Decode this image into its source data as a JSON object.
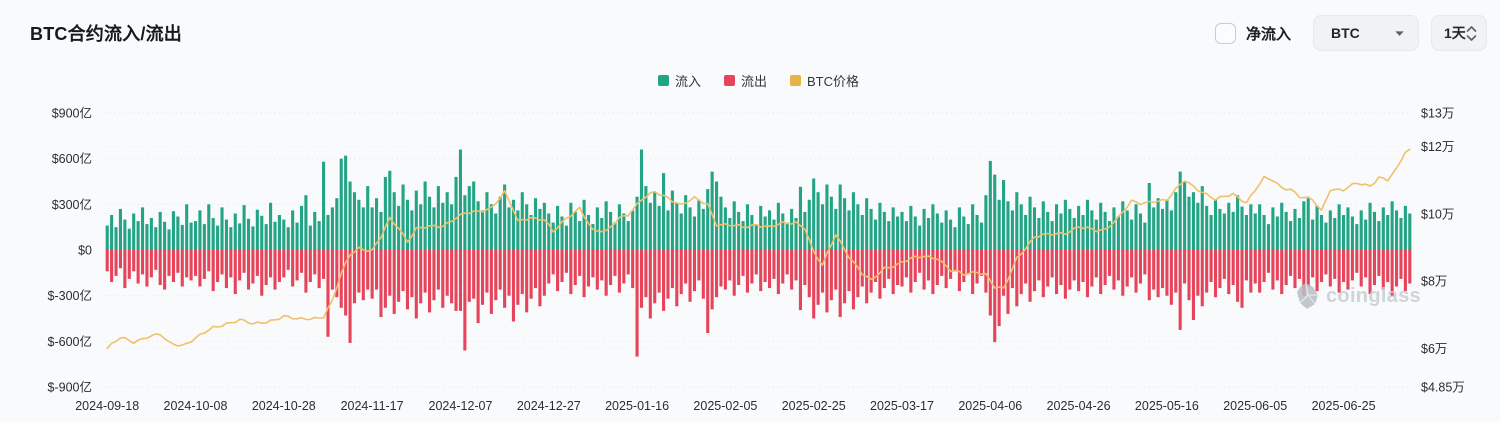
{
  "header": {
    "title": "BTC合约流入/流出"
  },
  "controls": {
    "net_flow": {
      "label": "净流入",
      "checked": false
    },
    "coin_select": {
      "value": "BTC"
    },
    "interval_select": {
      "value": "1天"
    }
  },
  "legend": {
    "items": [
      {
        "label": "流入",
        "color": "#23a485"
      },
      {
        "label": "流出",
        "color": "#e6445a"
      },
      {
        "label": "BTC价格",
        "color": "#e8b345"
      }
    ]
  },
  "watermark": {
    "text": "coinglass"
  },
  "chart_data": {
    "type": "bar",
    "title": "BTC合约流入/流出",
    "grid": true,
    "legend_position": "top-center",
    "start_date": "2024-09-18",
    "x_tick_labels": [
      "2024-09-18",
      "2024-10-08",
      "2024-10-28",
      "2024-11-17",
      "2024-12-07",
      "2024-12-27",
      "2025-01-16",
      "2025-02-05",
      "2025-02-25",
      "2025-03-17",
      "2025-04-06",
      "2025-04-26",
      "2025-05-16",
      "2025-06-05",
      "2025-06-25"
    ],
    "x_tick_day_indices": [
      0,
      20,
      40,
      60,
      80,
      100,
      120,
      140,
      160,
      180,
      200,
      220,
      240,
      260,
      280
    ],
    "left_axis": {
      "ticks": [
        "$900亿",
        "$600亿",
        "$300亿",
        "$0",
        "$-300亿",
        "$-600亿",
        "$-900亿"
      ],
      "tick_values": [
        900,
        600,
        300,
        0,
        -300,
        -600,
        -900
      ],
      "unit": "亿USD",
      "range": [
        -900,
        900
      ]
    },
    "right_axis": {
      "ticks": [
        "$13万",
        "$12万",
        "$10万",
        "$8万",
        "$6万",
        "$4.85万"
      ],
      "tick_values": [
        13,
        12,
        10,
        8,
        6,
        4.85
      ],
      "unit": "万USD",
      "range": [
        4.85,
        13
      ]
    },
    "series": [
      {
        "name": "流入",
        "type": "bar",
        "color": "#23a485",
        "unit": "亿USD",
        "values": [
          160,
          230,
          150,
          270,
          200,
          140,
          240,
          190,
          280,
          170,
          210,
          150,
          250,
          185,
          135,
          255,
          220,
          165,
          300,
          180,
          190,
          260,
          170,
          300,
          210,
          160,
          280,
          200,
          150,
          240,
          175,
          295,
          205,
          155,
          265,
          225,
          170,
          310,
          185,
          230,
          200,
          150,
          260,
          180,
          290,
          360,
          160,
          250,
          190,
          580,
          230,
          280,
          340,
          600,
          620,
          450,
          380,
          330,
          280,
          420,
          280,
          340,
          250,
          480,
          520,
          380,
          290,
          430,
          330,
          260,
          390,
          300,
          450,
          350,
          280,
          420,
          310,
          380,
          300,
          480,
          660,
          360,
          420,
          450,
          320,
          260,
          380,
          300,
          240,
          350,
          430,
          280,
          330,
          260,
          380,
          300,
          230,
          340,
          270,
          310,
          240,
          180,
          290,
          220,
          160,
          310,
          250,
          190,
          330,
          230,
          170,
          280,
          210,
          320,
          250,
          180,
          300,
          240,
          190,
          260,
          350,
          660,
          420,
          310,
          380,
          290,
          505,
          260,
          390,
          310,
          240,
          360,
          280,
          220,
          330,
          270,
          400,
          515,
          450,
          350,
          280,
          210,
          320,
          250,
          190,
          300,
          230,
          170,
          290,
          220,
          260,
          200,
          310,
          240,
          180,
          270,
          210,
          415,
          250,
          330,
          470,
          380,
          300,
          430,
          350,
          270,
          430,
          340,
          260,
          380,
          300,
          230,
          340,
          270,
          200,
          310,
          250,
          190,
          280,
          220,
          250,
          190,
          290,
          220,
          160,
          270,
          210,
          300,
          240,
          180,
          260,
          200,
          150,
          280,
          220,
          170,
          300,
          230,
          180,
          360,
          585,
          495,
          330,
          460,
          320,
          260,
          380,
          300,
          230,
          350,
          280,
          210,
          320,
          250,
          190,
          300,
          240,
          330,
          270,
          210,
          290,
          230,
          330,
          260,
          200,
          310,
          250,
          190,
          280,
          220,
          320,
          260,
          200,
          300,
          240,
          180,
          440,
          280,
          340,
          270,
          330,
          260,
          380,
          515,
          450,
          350,
          380,
          310,
          420,
          290,
          230,
          330,
          270,
          240,
          310,
          250,
          360,
          285,
          230,
          300,
          240,
          300,
          230,
          170,
          280,
          220,
          310,
          250,
          190,
          270,
          210,
          320,
          340,
          200,
          290,
          230,
          180,
          260,
          210,
          300,
          230,
          280,
          220,
          170,
          260,
          200,
          310,
          250,
          190,
          280,
          230,
          320,
          260,
          210,
          290,
          240
        ]
      },
      {
        "name": "流出",
        "type": "bar",
        "color": "#e6445a",
        "unit": "亿USD",
        "values": [
          -140,
          -210,
          -170,
          -120,
          -250,
          -190,
          -140,
          -220,
          -160,
          -240,
          -180,
          -130,
          -230,
          -260,
          -170,
          -210,
          -150,
          -240,
          -180,
          -200,
          -170,
          -240,
          -190,
          -140,
          -270,
          -210,
          -160,
          -250,
          -180,
          -290,
          -200,
          -150,
          -260,
          -220,
          -170,
          -300,
          -230,
          -180,
          -260,
          -210,
          -180,
          -130,
          -240,
          -200,
          -150,
          -280,
          -210,
          -160,
          -250,
          -190,
          -570,
          -260,
          -310,
          -380,
          -430,
          -610,
          -350,
          -280,
          -330,
          -260,
          -320,
          -260,
          -440,
          -380,
          -300,
          -420,
          -340,
          -270,
          -390,
          -310,
          -450,
          -350,
          -280,
          -410,
          -330,
          -260,
          -380,
          -300,
          -350,
          -400,
          -400,
          -660,
          -340,
          -320,
          -480,
          -360,
          -280,
          -420,
          -330,
          -260,
          -380,
          -300,
          -470,
          -360,
          -290,
          -410,
          -320,
          -250,
          -370,
          -300,
          -220,
          -160,
          -270,
          -210,
          -150,
          -290,
          -230,
          -170,
          -310,
          -240,
          -180,
          -260,
          -200,
          -300,
          -230,
          -170,
          -280,
          -220,
          -160,
          -250,
          -700,
          -380,
          -310,
          -450,
          -350,
          -280,
          -400,
          -320,
          -250,
          -370,
          -290,
          -220,
          -340,
          -270,
          -200,
          -320,
          -545,
          -390,
          -310,
          -240,
          -260,
          -200,
          -300,
          -230,
          -170,
          -280,
          -220,
          -160,
          -270,
          -210,
          -250,
          -190,
          -290,
          -220,
          -160,
          -260,
          -200,
          -395,
          -230,
          -310,
          -450,
          -360,
          -280,
          -410,
          -330,
          -260,
          -440,
          -350,
          -270,
          -390,
          -310,
          -240,
          -350,
          -280,
          -210,
          -320,
          -250,
          -190,
          -290,
          -230,
          -240,
          -180,
          -280,
          -210,
          -150,
          -260,
          -200,
          -290,
          -230,
          -170,
          -250,
          -190,
          -140,
          -270,
          -210,
          -160,
          -290,
          -220,
          -170,
          -280,
          -430,
          -605,
          -500,
          -300,
          -420,
          -250,
          -370,
          -290,
          -220,
          -340,
          -270,
          -200,
          -310,
          -240,
          -180,
          -290,
          -230,
          -320,
          -260,
          -200,
          -270,
          -210,
          -310,
          -240,
          -180,
          -290,
          -230,
          -170,
          -260,
          -200,
          -300,
          -240,
          -180,
          -280,
          -220,
          -160,
          -330,
          -260,
          -310,
          -250,
          -300,
          -360,
          -280,
          -525,
          -220,
          -330,
          -460,
          -300,
          -370,
          -280,
          -210,
          -310,
          -250,
          -190,
          -290,
          -230,
          -340,
          -380,
          -200,
          -280,
          -220,
          -280,
          -210,
          -150,
          -260,
          -200,
          -290,
          -230,
          -170,
          -250,
          -190,
          -300,
          -240,
          -180,
          -270,
          -210,
          -160,
          -240,
          -190,
          -280,
          -210,
          -260,
          -200,
          -150,
          -240,
          -180,
          -290,
          -230,
          -170,
          -260,
          -210,
          -300,
          -240,
          -190,
          -270,
          -220
        ]
      },
      {
        "name": "BTC价格",
        "type": "line",
        "color": "#f1c06a",
        "unit": "万USD",
        "waypoints": [
          [
            0,
            6.0
          ],
          [
            3,
            6.3
          ],
          [
            6,
            6.2
          ],
          [
            9,
            6.35
          ],
          [
            12,
            6.4
          ],
          [
            14,
            6.15
          ],
          [
            17,
            6.1
          ],
          [
            20,
            6.3
          ],
          [
            24,
            6.6
          ],
          [
            27,
            6.75
          ],
          [
            30,
            6.85
          ],
          [
            33,
            6.7
          ],
          [
            36,
            6.8
          ],
          [
            40,
            6.95
          ],
          [
            43,
            6.85
          ],
          [
            46,
            6.9
          ],
          [
            49,
            6.95
          ],
          [
            51,
            7.4
          ],
          [
            53,
            8.2
          ],
          [
            55,
            8.8
          ],
          [
            57,
            9.0
          ],
          [
            60,
            8.9
          ],
          [
            62,
            9.3
          ],
          [
            64,
            9.85
          ],
          [
            66,
            9.6
          ],
          [
            68,
            9.2
          ],
          [
            70,
            9.55
          ],
          [
            73,
            9.6
          ],
          [
            76,
            9.65
          ],
          [
            79,
            9.9
          ],
          [
            81,
            10.0
          ],
          [
            84,
            10.05
          ],
          [
            87,
            10.2
          ],
          [
            90,
            10.65
          ],
          [
            92,
            10.1
          ],
          [
            93,
            9.75
          ],
          [
            96,
            9.9
          ],
          [
            99,
            9.85
          ],
          [
            101,
            9.45
          ],
          [
            104,
            9.85
          ],
          [
            107,
            10.2
          ],
          [
            110,
            9.5
          ],
          [
            113,
            9.45
          ],
          [
            116,
            9.9
          ],
          [
            118,
            10.0
          ],
          [
            121,
            10.4
          ],
          [
            124,
            10.65
          ],
          [
            127,
            10.5
          ],
          [
            130,
            10.25
          ],
          [
            133,
            10.45
          ],
          [
            136,
            10.3
          ],
          [
            138,
            9.7
          ],
          [
            141,
            9.65
          ],
          [
            144,
            9.6
          ],
          [
            147,
            9.7
          ],
          [
            150,
            9.6
          ],
          [
            153,
            9.7
          ],
          [
            156,
            9.75
          ],
          [
            158,
            9.6
          ],
          [
            160,
            8.85
          ],
          [
            162,
            8.45
          ],
          [
            165,
            9.4
          ],
          [
            168,
            8.75
          ],
          [
            171,
            8.2
          ],
          [
            173,
            8.0
          ],
          [
            176,
            8.4
          ],
          [
            179,
            8.5
          ],
          [
            182,
            8.65
          ],
          [
            185,
            8.75
          ],
          [
            188,
            8.7
          ],
          [
            191,
            8.3
          ],
          [
            194,
            8.2
          ],
          [
            197,
            8.3
          ],
          [
            199,
            8.2
          ],
          [
            201,
            7.8
          ],
          [
            203,
            7.75
          ],
          [
            206,
            8.7
          ],
          [
            210,
            9.3
          ],
          [
            214,
            9.4
          ],
          [
            217,
            9.45
          ],
          [
            220,
            9.6
          ],
          [
            224,
            9.5
          ],
          [
            226,
            9.55
          ],
          [
            229,
            9.9
          ],
          [
            232,
            10.35
          ],
          [
            234,
            10.3
          ],
          [
            237,
            10.4
          ],
          [
            240,
            10.4
          ],
          [
            242,
            10.7
          ],
          [
            244,
            11.0
          ],
          [
            247,
            10.75
          ],
          [
            251,
            10.4
          ],
          [
            255,
            10.6
          ],
          [
            258,
            10.35
          ],
          [
            262,
            11.05
          ],
          [
            264,
            11.0
          ],
          [
            266,
            10.8
          ],
          [
            268,
            10.75
          ],
          [
            270,
            10.5
          ],
          [
            273,
            10.4
          ],
          [
            275,
            10.1
          ],
          [
            277,
            10.75
          ],
          [
            280,
            10.7
          ],
          [
            283,
            10.9
          ],
          [
            286,
            10.85
          ],
          [
            288,
            11.1
          ],
          [
            290,
            11.0
          ],
          [
            292,
            11.3
          ],
          [
            294,
            11.85
          ],
          [
            295,
            11.9
          ]
        ]
      }
    ]
  },
  "colors": {
    "background": "#f9fafb",
    "grid": "#e7e9ed",
    "axis_text": "#2a2d31",
    "inflow": "#23a485",
    "outflow": "#e6445a",
    "price_line": "#f1c06a",
    "watermark": "#c9ced4"
  }
}
